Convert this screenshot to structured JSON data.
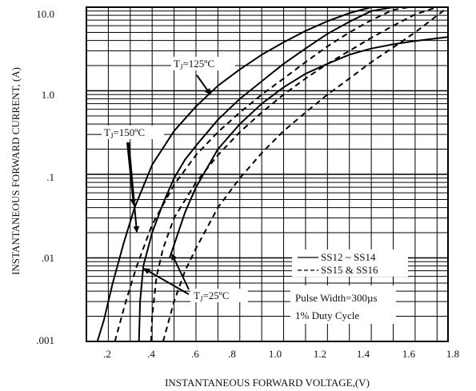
{
  "chart_data": {
    "type": "line",
    "xlabel": "INSTANTANEOUS FORWARD VOLTAGE,(V)",
    "ylabel": "INSTANTANEOUS FORWARD CURRENT, (A)",
    "xlim": [
      0.1,
      1.75
    ],
    "ylim": [
      0.001,
      10
    ],
    "y_scale": "log",
    "x_ticks": [
      ".2",
      ".4",
      ".6",
      ".8",
      "1.0",
      "1.2",
      "1.4",
      "1.6",
      "1.8"
    ],
    "y_ticks": [
      "10.0",
      "1.0",
      ".1",
      ".01",
      ".001"
    ],
    "grid": true,
    "legend": {
      "position": "lower-right",
      "entries": [
        {
          "label": "SS12 ~ SS14",
          "style": "solid"
        },
        {
          "label": "SS15 & SS16",
          "style": "dashed"
        }
      ]
    },
    "note_lines": [
      "Pulse Width=300µs",
      "1% Duty Cycle"
    ],
    "series": [
      {
        "legend": "SS12 ~ SS14",
        "condition": "TJ=150ºC",
        "style": "solid",
        "x": [
          0.15,
          0.18,
          0.22,
          0.27,
          0.32,
          0.4,
          0.5,
          0.6,
          0.7,
          0.8,
          0.9,
          1.0,
          1.1,
          1.2,
          1.3,
          1.4,
          1.48
        ],
        "y": [
          0.001,
          0.0018,
          0.005,
          0.015,
          0.04,
          0.13,
          0.33,
          0.65,
          1.15,
          1.8,
          2.7,
          3.8,
          5.2,
          6.8,
          8.5,
          10.0,
          10.0
        ]
      },
      {
        "legend": "SS12 ~ SS14",
        "condition": "TJ=125ºC",
        "style": "solid",
        "x": [
          0.34,
          0.345,
          0.36,
          0.4,
          0.45,
          0.5,
          0.55,
          0.6,
          0.7,
          0.8,
          0.9,
          1.0,
          1.1,
          1.2,
          1.3,
          1.4,
          1.5
        ],
        "y": [
          0.001,
          0.003,
          0.008,
          0.02,
          0.045,
          0.09,
          0.15,
          0.22,
          0.45,
          0.8,
          1.3,
          2.1,
          3.2,
          4.8,
          6.7,
          9.0,
          10.0
        ]
      },
      {
        "legend": "SS12 ~ SS14",
        "condition": "TJ=25ºC",
        "style": "solid",
        "x": [
          0.48,
          0.55,
          0.6,
          0.7,
          0.8,
          0.9,
          1.0,
          1.1,
          1.2,
          1.3,
          1.4,
          1.5,
          1.6,
          1.75
        ],
        "y": [
          0.01,
          0.035,
          0.07,
          0.2,
          0.4,
          0.7,
          1.1,
          1.6,
          2.1,
          2.7,
          3.2,
          3.6,
          3.95,
          4.4
        ]
      },
      {
        "legend": "SS15 & SS16",
        "condition": "TJ=150ºC",
        "style": "dashed",
        "x": [
          0.23,
          0.28,
          0.33,
          0.4,
          0.5,
          0.6,
          0.7,
          0.8,
          0.9,
          1.0,
          1.1,
          1.2,
          1.3,
          1.4,
          1.5,
          1.57
        ],
        "y": [
          0.001,
          0.003,
          0.008,
          0.025,
          0.075,
          0.17,
          0.32,
          0.55,
          0.9,
          1.4,
          2.2,
          3.4,
          5.0,
          7.0,
          9.3,
          10.0
        ]
      },
      {
        "legend": "SS15 & SS16",
        "condition": "TJ=125ºC",
        "style": "dashed",
        "x": [
          0.395,
          0.4,
          0.42,
          0.45,
          0.5,
          0.6,
          0.7,
          0.8,
          0.9,
          1.0,
          1.1,
          1.2,
          1.3,
          1.4,
          1.5,
          1.6,
          1.7
        ],
        "y": [
          0.001,
          0.002,
          0.006,
          0.013,
          0.03,
          0.08,
          0.17,
          0.32,
          0.55,
          0.9,
          1.4,
          2.1,
          3.0,
          4.3,
          6.0,
          8.2,
          10.0
        ]
      },
      {
        "legend": "SS15 & SS16",
        "condition": "TJ=25ºC",
        "style": "dashed",
        "x": [
          0.45,
          0.5,
          0.55,
          0.6,
          0.7,
          0.8,
          0.9,
          1.0,
          1.1,
          1.2,
          1.3,
          1.4,
          1.5,
          1.6,
          1.75
        ],
        "y": [
          0.001,
          0.003,
          0.007,
          0.013,
          0.04,
          0.09,
          0.18,
          0.33,
          0.55,
          0.9,
          1.4,
          2.2,
          3.3,
          5.0,
          10.0
        ]
      }
    ],
    "annotations": [
      {
        "prefix": "T",
        "sub": "J",
        "text": "=125ºC"
      },
      {
        "prefix": "T",
        "sub": "J",
        "text": "=150ºC"
      },
      {
        "prefix": "T",
        "sub": "J",
        "text": "=25ºC"
      }
    ]
  }
}
